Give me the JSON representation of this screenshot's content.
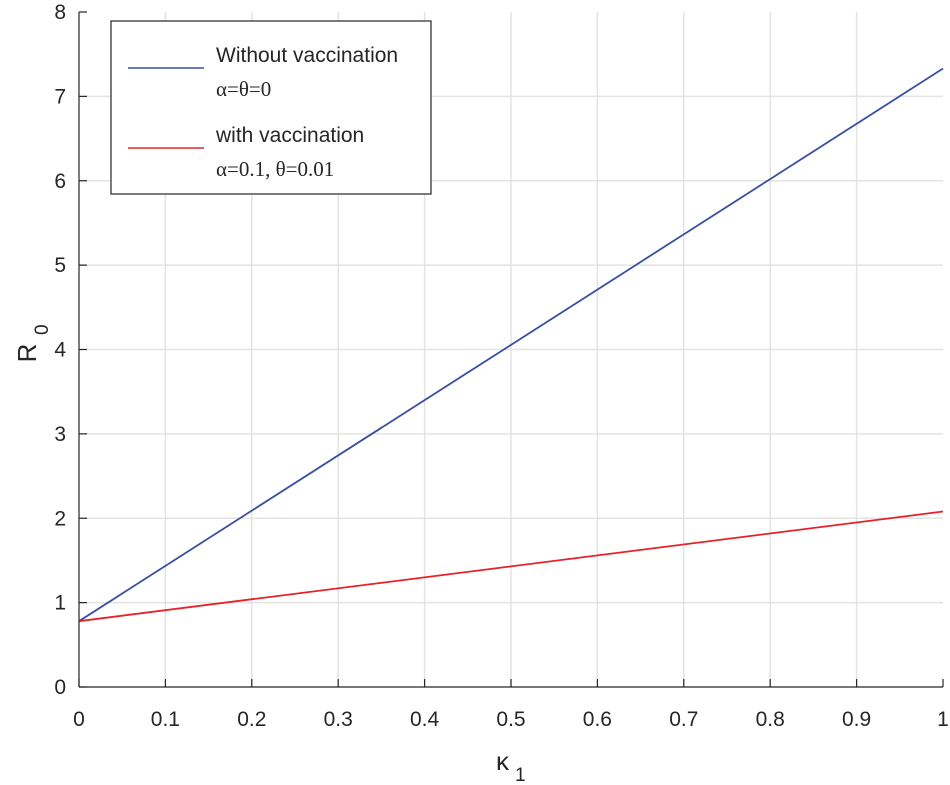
{
  "chart_data": {
    "type": "line",
    "title": "",
    "xlabel": {
      "main": "κ",
      "sub": "1"
    },
    "ylabel": {
      "main": "R",
      "sub": "0"
    },
    "xlim": [
      0,
      1
    ],
    "ylim": [
      0,
      8
    ],
    "x_ticks": [
      0,
      0.1,
      0.2,
      0.3,
      0.4,
      0.5,
      0.6,
      0.7,
      0.8,
      0.9,
      1
    ],
    "x_tick_labels": [
      "0",
      "0.1",
      "0.2",
      "0.3",
      "0.4",
      "0.5",
      "0.6",
      "0.7",
      "0.8",
      "0.9",
      "1"
    ],
    "y_ticks": [
      0,
      1,
      2,
      3,
      4,
      5,
      6,
      7,
      8
    ],
    "y_tick_labels": [
      "0",
      "1",
      "2",
      "3",
      "4",
      "5",
      "6",
      "7",
      "8"
    ],
    "grid": true,
    "legend_position": "top-left",
    "series": [
      {
        "name": "Without vaccination",
        "params": "α=θ=0",
        "color": "#3b4fa0",
        "x": [
          0,
          1
        ],
        "y": [
          0.78,
          7.33
        ]
      },
      {
        "name": "with vaccination",
        "params": "α=0.1, θ=0.01",
        "color": "#e8202a",
        "x": [
          0,
          1
        ],
        "y": [
          0.78,
          2.08
        ]
      }
    ]
  }
}
